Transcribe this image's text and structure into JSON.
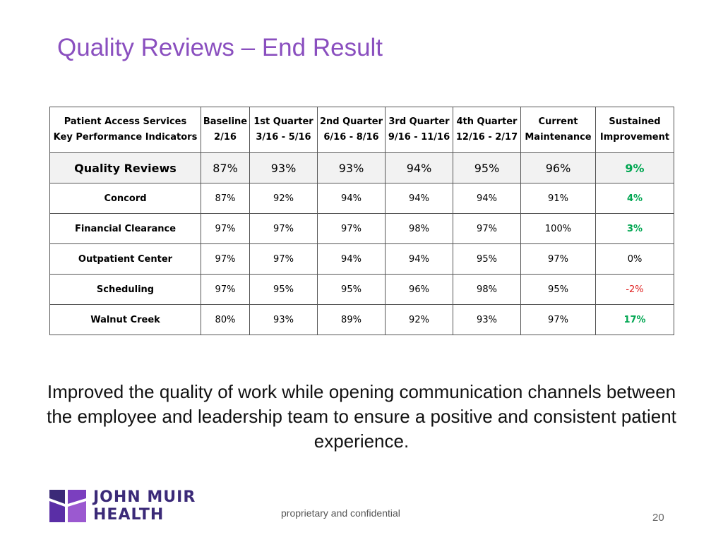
{
  "slide": {
    "title": "Quality Reviews – End Result",
    "statement": "Improved the quality of work while opening communication channels between the employee and leadership team to ensure a positive and consistent patient experience.",
    "footer": "proprietary and confidential",
    "page_number": "20"
  },
  "logo": {
    "line1": "JOHN MUIR",
    "line2": "HEALTH"
  },
  "table": {
    "headers": [
      {
        "l1": "Patient Access Services",
        "l2": "Key Performance Indicators"
      },
      {
        "l1": "Baseline",
        "l2": "2/16"
      },
      {
        "l1": "1st Quarter",
        "l2": "3/16 - 5/16"
      },
      {
        "l1": "2nd Quarter",
        "l2": "6/16 - 8/16"
      },
      {
        "l1": "3rd Quarter",
        "l2": "9/16 - 11/16"
      },
      {
        "l1": "4th Quarter",
        "l2": "12/16 - 2/17"
      },
      {
        "l1": "Current",
        "l2": "Maintenance"
      },
      {
        "l1": "Sustained",
        "l2": "Improvement"
      }
    ],
    "summary": {
      "label": "Quality Reviews",
      "values": [
        "87%",
        "93%",
        "93%",
        "94%",
        "95%",
        "96%"
      ],
      "improvement": "9%"
    },
    "rows": [
      {
        "label": "Concord",
        "values": [
          "87%",
          "92%",
          "94%",
          "94%",
          "94%",
          "91%"
        ],
        "improvement": "4%"
      },
      {
        "label": "Financial Clearance",
        "values": [
          "97%",
          "97%",
          "97%",
          "98%",
          "97%",
          "100%"
        ],
        "improvement": "3%"
      },
      {
        "label": "Outpatient Center",
        "values": [
          "97%",
          "97%",
          "94%",
          "94%",
          "95%",
          "97%"
        ],
        "improvement": "0%"
      },
      {
        "label": "Scheduling",
        "values": [
          "97%",
          "95%",
          "95%",
          "96%",
          "98%",
          "95%"
        ],
        "improvement": "-2%"
      },
      {
        "label": "Walnut Creek",
        "values": [
          "80%",
          "93%",
          "89%",
          "92%",
          "93%",
          "97%"
        ],
        "improvement": "17%"
      }
    ]
  },
  "colors": {
    "title": "#8a4fbf",
    "positive": "#00a651",
    "negative": "#e02020",
    "logo_purple": "#3b2a78"
  },
  "icons": {
    "logo_mark": "john-muir-logo-icon"
  }
}
